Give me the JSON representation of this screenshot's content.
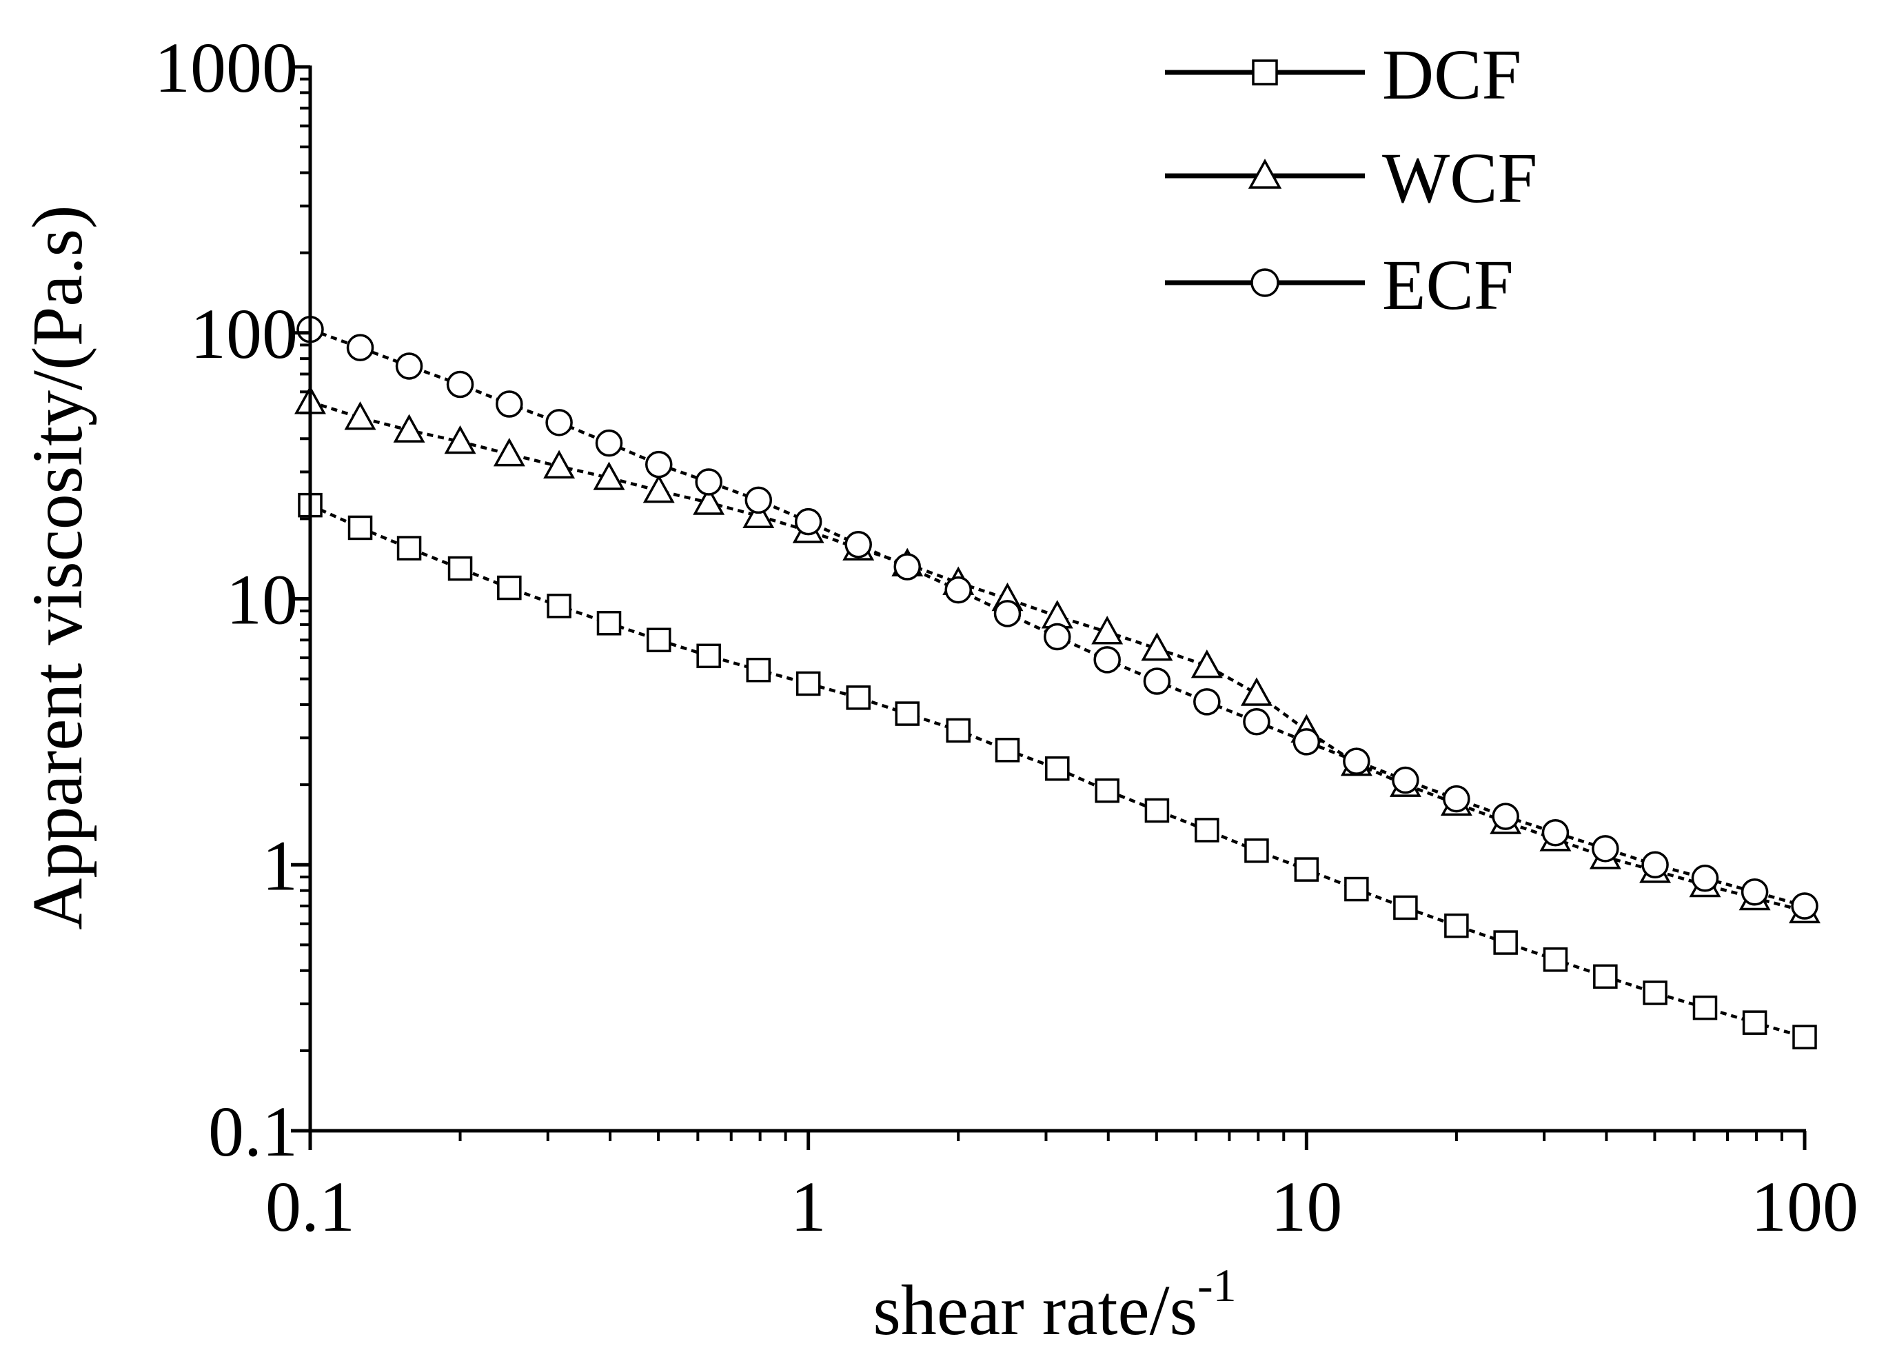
{
  "chart_data": {
    "type": "line",
    "xscale": "log",
    "yscale": "log",
    "xlim": [
      0.1,
      100
    ],
    "ylim": [
      0.1,
      1000
    ],
    "xlabel": "shear rate/s",
    "xlabel_sup": "-1",
    "ylabel": "Apparent viscosity/(Pa.s)",
    "x_ticks": [
      {
        "value": 0.1,
        "label": "0.1"
      },
      {
        "value": 1,
        "label": "1"
      },
      {
        "value": 10,
        "label": "10"
      },
      {
        "value": 100,
        "label": "100"
      }
    ],
    "y_ticks": [
      {
        "value": 0.1,
        "label": "0.1"
      },
      {
        "value": 1,
        "label": "1"
      },
      {
        "value": 10,
        "label": "10"
      },
      {
        "value": 100,
        "label": "100"
      },
      {
        "value": 1000,
        "label": "1000"
      }
    ],
    "legend_position": "top-right",
    "x": [
      0.1,
      0.126,
      0.158,
      0.2,
      0.251,
      0.316,
      0.398,
      0.501,
      0.631,
      0.794,
      1,
      1.26,
      1.58,
      2,
      2.51,
      3.16,
      3.98,
      5.01,
      6.31,
      7.94,
      10,
      12.6,
      15.8,
      20,
      25.1,
      31.6,
      39.8,
      50.1,
      63.1,
      79.4,
      100
    ],
    "series": [
      {
        "name": "DCF",
        "marker": "square",
        "values": [
          22.5,
          18.5,
          15.5,
          13.0,
          11.0,
          9.4,
          8.1,
          7.0,
          6.1,
          5.4,
          4.8,
          4.25,
          3.7,
          3.2,
          2.7,
          2.3,
          1.9,
          1.6,
          1.35,
          1.13,
          0.96,
          0.81,
          0.69,
          0.59,
          0.51,
          0.44,
          0.38,
          0.33,
          0.29,
          0.255,
          0.225
        ]
      },
      {
        "name": "WCF",
        "marker": "triangle",
        "values": [
          55,
          48,
          43,
          39,
          35,
          31.5,
          28.5,
          25.5,
          23,
          20.5,
          18,
          15.5,
          13.5,
          11.5,
          10,
          8.6,
          7.5,
          6.5,
          5.6,
          4.4,
          3.2,
          2.4,
          2.0,
          1.7,
          1.45,
          1.25,
          1.07,
          0.95,
          0.84,
          0.75,
          0.67
        ]
      },
      {
        "name": "ECF",
        "marker": "circle",
        "values": [
          103,
          88,
          75,
          64,
          54,
          46,
          38.5,
          32,
          27.5,
          23.5,
          19.5,
          16,
          13.2,
          10.8,
          8.8,
          7.2,
          5.9,
          4.9,
          4.1,
          3.45,
          2.9,
          2.45,
          2.08,
          1.77,
          1.52,
          1.32,
          1.15,
          1.0,
          0.89,
          0.79,
          0.7
        ]
      }
    ]
  }
}
